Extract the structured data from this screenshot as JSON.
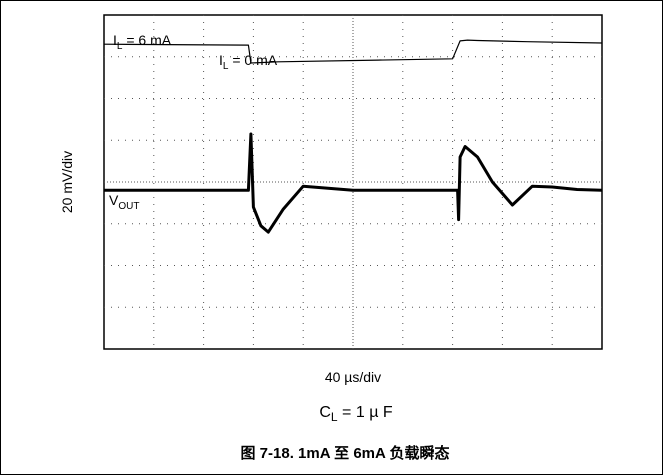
{
  "chart_data": {
    "type": "line",
    "title": "",
    "ylabel": "20 mV/div",
    "xlabel": "40 µs/div",
    "note": "C_L = 1 µF",
    "caption": "图 7-18. 1mA 至 6mA 负载瞬态",
    "grid": true,
    "xlim": [
      0,
      10
    ],
    "ylim": [
      0,
      8
    ],
    "annotations": [
      {
        "text": "I_L = 6 mA",
        "label": "I",
        "sub": "L",
        "rest": " = 6 mA"
      },
      {
        "text": "I_L = 0 mA",
        "label": "I",
        "sub": "L",
        "rest": " = 0 mA"
      },
      {
        "text": "V_OUT",
        "label": "V",
        "sub": "OUT",
        "rest": ""
      }
    ],
    "series": [
      {
        "name": "I_L",
        "x": [
          0,
          2.9,
          2.95,
          3.5,
          5.5,
          7.0,
          7.15,
          7.3,
          7.5,
          8.5,
          10
        ],
        "y": [
          7.3,
          7.28,
          6.85,
          6.88,
          6.92,
          6.95,
          7.38,
          7.4,
          7.39,
          7.36,
          7.33
        ]
      },
      {
        "name": "V_OUT",
        "x": [
          0,
          2.9,
          2.95,
          3.0,
          3.15,
          3.3,
          3.6,
          4.0,
          4.5,
          5.0,
          6.0,
          7.1,
          7.12,
          7.15,
          7.25,
          7.5,
          7.8,
          8.2,
          8.6,
          9.0,
          9.5,
          10
        ],
        "y": [
          3.8,
          3.8,
          5.15,
          3.4,
          2.95,
          2.8,
          3.35,
          3.9,
          3.85,
          3.8,
          3.8,
          3.8,
          3.1,
          4.6,
          4.85,
          4.6,
          4.0,
          3.45,
          3.9,
          3.88,
          3.82,
          3.8
        ]
      }
    ]
  }
}
